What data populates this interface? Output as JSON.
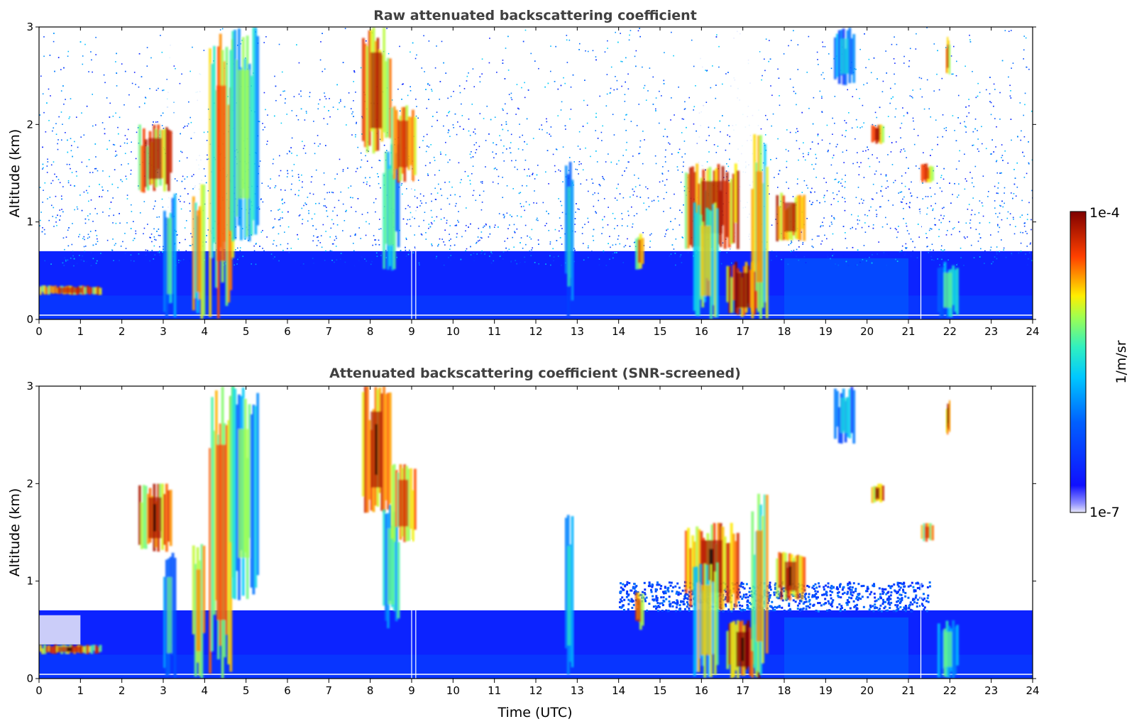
{
  "chart_data": [
    {
      "type": "heatmap",
      "title": "Raw attenuated backscattering coefficient",
      "xlabel": "",
      "ylabel": "Altitude (km)",
      "xlim": [
        0,
        24
      ],
      "ylim": [
        0,
        3
      ],
      "x_ticks": [
        "0",
        "1",
        "2",
        "3",
        "4",
        "5",
        "6",
        "7",
        "8",
        "9",
        "10",
        "11",
        "12",
        "13",
        "14",
        "15",
        "16",
        "17",
        "18",
        "19",
        "20",
        "21",
        "22",
        "23",
        "24"
      ],
      "y_ticks": [
        "0",
        "1",
        "2",
        "3"
      ],
      "colormap": "jet",
      "colorbar": {
        "min_label": "1e-7",
        "max_label": "1e-4",
        "label": "1/m/sr",
        "scale": "log"
      },
      "noise_floor_height_km": 0.7,
      "features": [
        {
          "x": [
            0.0,
            1.5
          ],
          "y": [
            0.25,
            0.35
          ],
          "level": 0.92
        },
        {
          "x": [
            2.4,
            3.2
          ],
          "y": [
            1.3,
            2.0
          ],
          "level": 0.95
        },
        {
          "x": [
            3.0,
            3.3
          ],
          "y": [
            0.0,
            1.3
          ],
          "level": 0.6
        },
        {
          "x": [
            3.7,
            4.0
          ],
          "y": [
            0.0,
            1.4
          ],
          "level": 0.8
        },
        {
          "x": [
            4.1,
            4.7
          ],
          "y": [
            0.0,
            3.0
          ],
          "level": 0.85
        },
        {
          "x": [
            4.6,
            5.3
          ],
          "y": [
            0.8,
            3.0
          ],
          "level": 0.65
        },
        {
          "x": [
            7.8,
            8.5
          ],
          "y": [
            1.7,
            3.0
          ],
          "level": 0.95
        },
        {
          "x": [
            8.3,
            8.7
          ],
          "y": [
            0.5,
            1.8
          ],
          "level": 0.6
        },
        {
          "x": [
            8.5,
            9.1
          ],
          "y": [
            1.4,
            2.2
          ],
          "level": 0.9
        },
        {
          "x": [
            12.7,
            12.9
          ],
          "y": [
            0.0,
            1.7
          ],
          "level": 0.55
        },
        {
          "x": [
            14.4,
            14.6
          ],
          "y": [
            0.5,
            0.9
          ],
          "level": 0.9
        },
        {
          "x": [
            15.6,
            16.9
          ],
          "y": [
            0.7,
            1.6
          ],
          "level": 0.95
        },
        {
          "x": [
            15.8,
            16.4
          ],
          "y": [
            0.0,
            1.2
          ],
          "level": 0.75
        },
        {
          "x": [
            16.6,
            17.4
          ],
          "y": [
            0.0,
            0.6
          ],
          "level": 1.0
        },
        {
          "x": [
            17.2,
            17.6
          ],
          "y": [
            0.0,
            1.9
          ],
          "level": 0.8
        },
        {
          "x": [
            17.8,
            18.5
          ],
          "y": [
            0.8,
            1.3
          ],
          "level": 0.95
        },
        {
          "x": [
            19.2,
            19.7
          ],
          "y": [
            2.4,
            3.0
          ],
          "level": 0.5
        },
        {
          "x": [
            20.1,
            20.4
          ],
          "y": [
            1.8,
            2.0
          ],
          "level": 0.97
        },
        {
          "x": [
            21.3,
            21.6
          ],
          "y": [
            1.4,
            1.6
          ],
          "level": 0.9
        },
        {
          "x": [
            21.7,
            22.2
          ],
          "y": [
            0.0,
            0.6
          ],
          "level": 0.6
        },
        {
          "x": [
            21.9,
            22.0
          ],
          "y": [
            2.5,
            2.9
          ],
          "level": 0.95
        }
      ]
    },
    {
      "type": "heatmap",
      "title": "Attenuated backscattering coefficient (SNR-screened)",
      "xlabel": "Time (UTC)",
      "ylabel": "Altitude (km)",
      "xlim": [
        0,
        24
      ],
      "ylim": [
        0,
        3
      ],
      "x_ticks": [
        "0",
        "1",
        "2",
        "3",
        "4",
        "5",
        "6",
        "7",
        "8",
        "9",
        "10",
        "11",
        "12",
        "13",
        "14",
        "15",
        "16",
        "17",
        "18",
        "19",
        "20",
        "21",
        "22",
        "23",
        "24"
      ],
      "y_ticks": [
        "0",
        "1",
        "2",
        "3"
      ],
      "colormap": "jet",
      "colorbar": {
        "min_label": "1e-7",
        "max_label": "1e-4",
        "label": "1/m/sr",
        "scale": "log"
      },
      "boundary_layer_top_km": 0.7
    }
  ]
}
